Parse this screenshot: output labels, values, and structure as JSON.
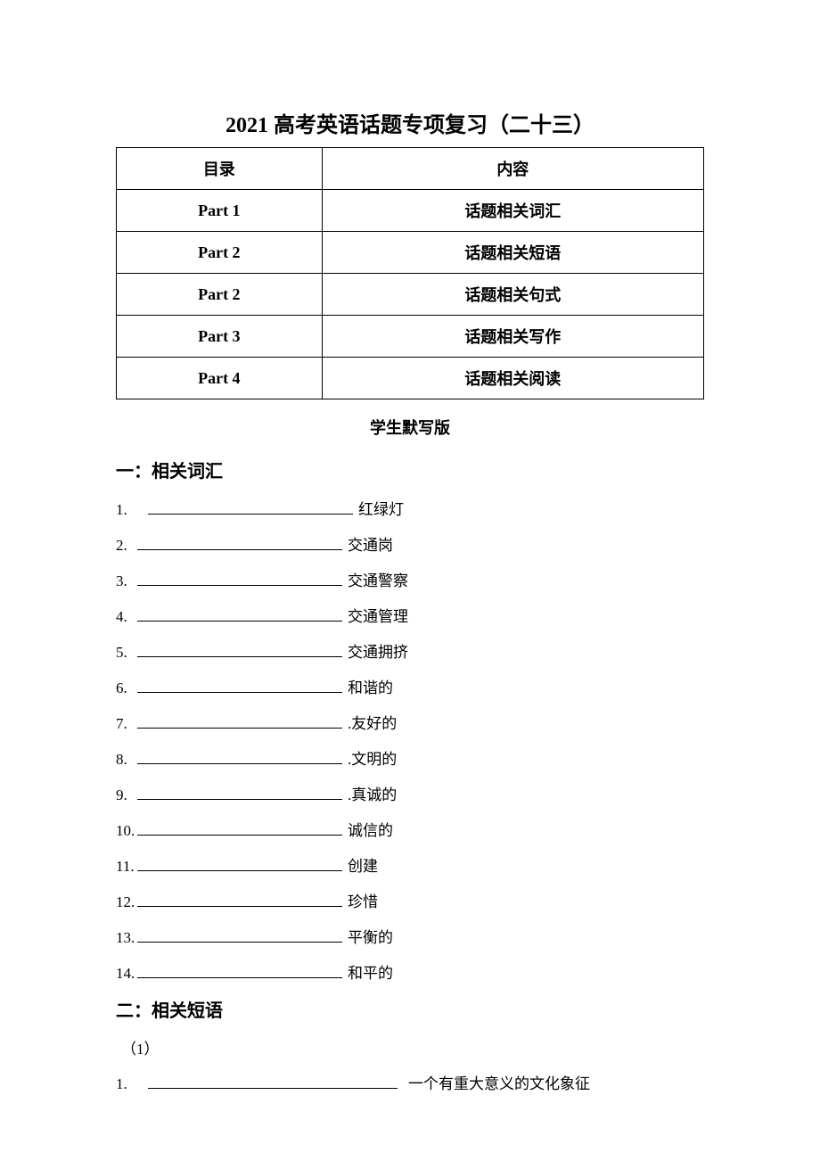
{
  "title": "2021 高考英语话题专项复习（二十三）",
  "toc": {
    "header_left": "目录",
    "header_right": "内容",
    "rows": [
      {
        "left": "Part   1",
        "right": "话题相关词汇"
      },
      {
        "left": "Part   2",
        "right": "话题相关短语"
      },
      {
        "left": "Part   2",
        "right": "话题相关句式"
      },
      {
        "left": "Part   3",
        "right": "话题相关写作"
      },
      {
        "left": "Part   4",
        "right": "话题相关阅读"
      }
    ]
  },
  "subtitle": "学生默写版",
  "section1": {
    "heading": "一：相关词汇",
    "items": [
      {
        "num": "1.",
        "text": "红绿灯"
      },
      {
        "num": "2.",
        "text": "交通岗"
      },
      {
        "num": "3.",
        "text": "交通警察"
      },
      {
        "num": "4.",
        "text": "交通管理"
      },
      {
        "num": "5.",
        "text": "交通拥挤"
      },
      {
        "num": "6.",
        "text": "和谐的"
      },
      {
        "num": "7.",
        "text": ".友好的"
      },
      {
        "num": "8.",
        "text": ".文明的"
      },
      {
        "num": "9.",
        "text": ".真诚的"
      },
      {
        "num": "10.",
        "text": "诚信的"
      },
      {
        "num": "11.",
        "text": "创建"
      },
      {
        "num": "12.",
        "text": "珍惜"
      },
      {
        "num": "13.",
        "text": "平衡的"
      },
      {
        "num": "14.",
        "text": "和平的"
      }
    ]
  },
  "section2": {
    "heading": "二：相关短语",
    "sub": "（1）",
    "items": [
      {
        "num": "1.",
        "text": "一个有重大意义的文化象征"
      }
    ]
  }
}
